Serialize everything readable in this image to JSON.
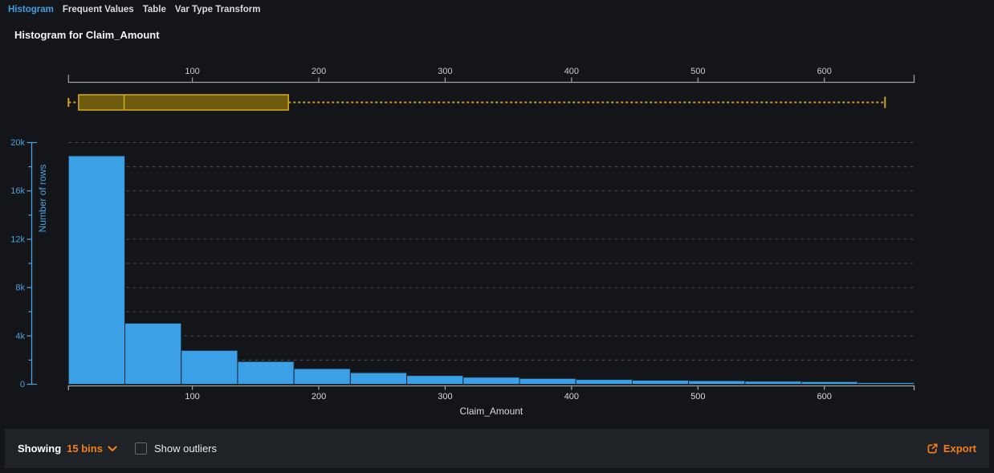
{
  "tabs": [
    {
      "label": "Histogram",
      "active": true
    },
    {
      "label": "Frequent Values",
      "active": false
    },
    {
      "label": "Table",
      "active": false
    },
    {
      "label": "Var Type Transform",
      "active": false
    }
  ],
  "title": "Histogram for Claim_Amount",
  "footer": {
    "showing_label": "Showing",
    "bins_value": "15 bins",
    "show_outliers_label": "Show outliers",
    "outliers_checked": false,
    "export_label": "Export"
  },
  "colors": {
    "page_bg": "#131519",
    "footer_bg": "#1f2226",
    "accent_blue": "#3f9fe4",
    "orange": "#f28019",
    "bar_fill": "#3ba0e6",
    "bar_stroke": "#1b2836",
    "axis_blue": "#4aa0e0",
    "grid": "#45484d",
    "axis_gray": "#9fa1a4",
    "tick_label_gray": "#c9cbcd",
    "x_label_gray": "#d8dadc",
    "box_fill": "#6f5b10",
    "box_stroke": "#d5ab19",
    "whisker": "#c9a227"
  },
  "chart_data": [
    {
      "type": "boxplot",
      "orientation": "horizontal",
      "variable": "Claim_Amount",
      "axis": {
        "min": 2,
        "max": 671,
        "ticks": [
          100,
          200,
          300,
          400,
          500,
          600
        ]
      },
      "stats": {
        "min": 2,
        "q1": 10,
        "median": 46,
        "q3": 176,
        "max": 648
      }
    },
    {
      "type": "bar",
      "title": "Histogram for Claim_Amount",
      "xlabel": "Claim_Amount",
      "ylabel": "Number of rows",
      "xlim": [
        2,
        671
      ],
      "ylim": [
        0,
        20000
      ],
      "x_ticks": [
        100,
        200,
        300,
        400,
        500,
        600
      ],
      "y_tick_labels": [
        "0",
        "4k",
        "8k",
        "12k",
        "16k",
        "20k"
      ],
      "y_major_step": 4000,
      "y_minor_step": 2000,
      "grid": "dashed",
      "legend": "none",
      "bins": {
        "start": 2,
        "width": 44.6,
        "count": 15
      },
      "values": [
        18900,
        5050,
        2800,
        1880,
        1290,
        960,
        720,
        580,
        480,
        395,
        330,
        290,
        250,
        215,
        130
      ]
    }
  ]
}
